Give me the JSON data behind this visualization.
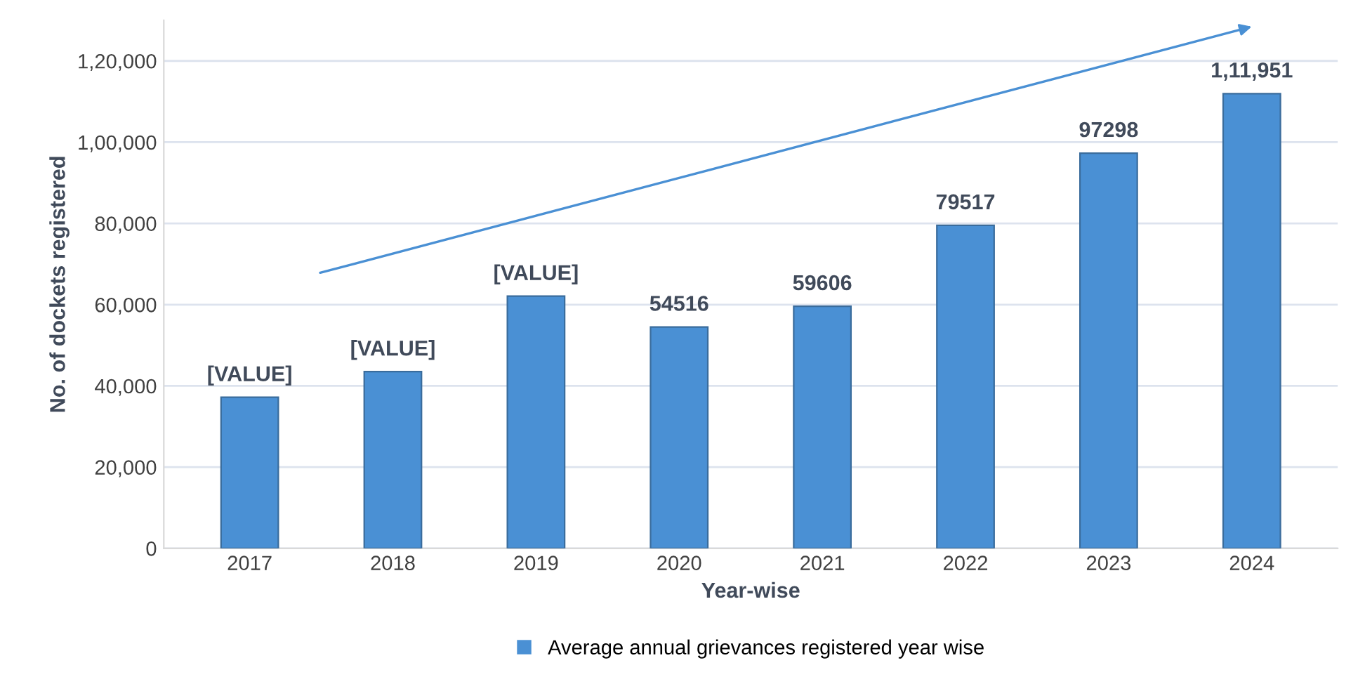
{
  "chart_data": {
    "type": "bar",
    "xlabel": "Year-wise",
    "ylabel": "No. of dockets registered",
    "categories": [
      "2017",
      "2018",
      "2019",
      "2020",
      "2021",
      "2022",
      "2023",
      "2024"
    ],
    "series": [
      {
        "name": "Average annual grievances registered year wise",
        "color": "#4a90d4",
        "values": [
          37200,
          43500,
          62100,
          54516,
          59606,
          79517,
          97298,
          111951
        ],
        "value_labels": [
          "[VALUE]",
          "[VALUE]",
          "[VALUE]",
          "54516",
          "59606",
          "79517",
          "97298",
          "1,11,951"
        ]
      }
    ],
    "ylim": [
      0,
      130000
    ],
    "yticks": [
      0,
      {
        "value": 20000,
        "label": "20,000"
      },
      {
        "value": 40000,
        "label": "40,000"
      },
      {
        "value": 60000,
        "label": "60,000"
      },
      {
        "value": 80000,
        "label": "80,000"
      },
      {
        "value": 100000,
        "label": "1,00,000"
      },
      {
        "value": 120000,
        "label": "1,20,000"
      }
    ],
    "grid": "y",
    "legend": "bottom"
  }
}
